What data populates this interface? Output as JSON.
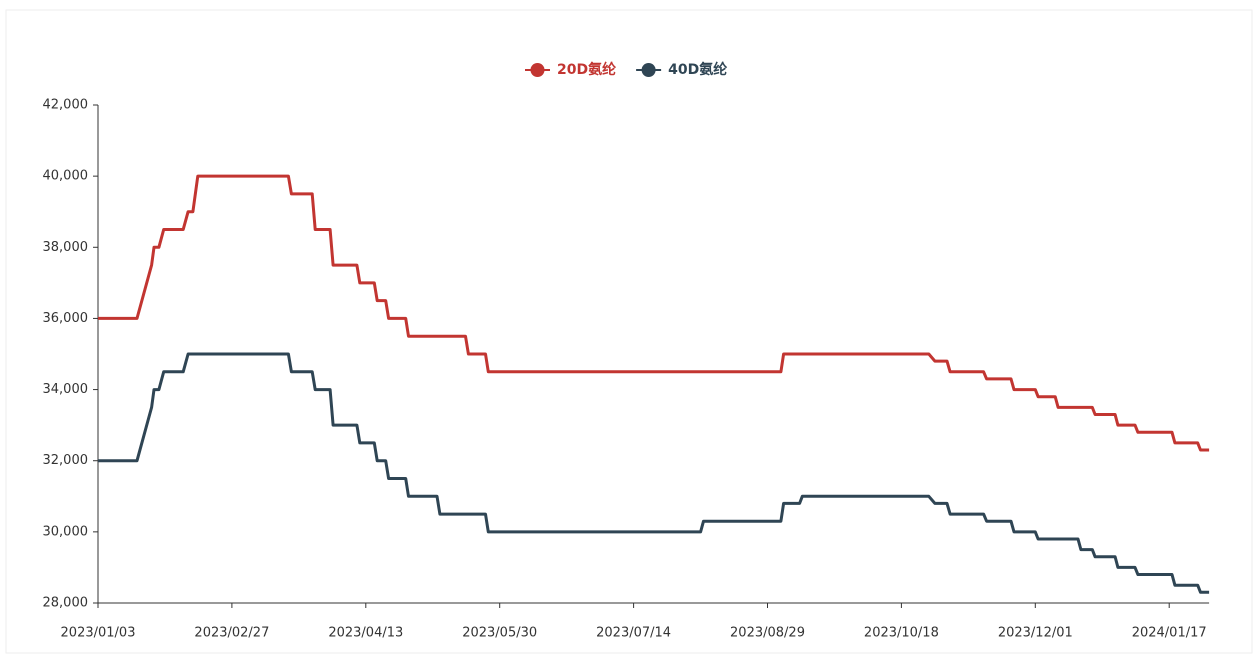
{
  "chart_data": {
    "type": "line",
    "x": [
      "2023/01/03",
      "2023/01/19",
      "2023/01/25",
      "2023/01/26",
      "2023/01/28",
      "2023/01/30",
      "2023/02/07",
      "2023/02/09",
      "2023/02/11",
      "2023/02/13",
      "2023/03/18",
      "2023/03/19",
      "2023/03/26",
      "2023/03/27",
      "2023/04/01",
      "2023/04/02",
      "2023/04/10",
      "2023/04/11",
      "2023/04/16",
      "2023/04/17",
      "2023/04/20",
      "2023/04/21",
      "2023/04/27",
      "2023/04/28",
      "2023/05/08",
      "2023/05/09",
      "2023/05/18",
      "2023/05/19",
      "2023/05/25",
      "2023/05/26",
      "2023/08/06",
      "2023/08/07",
      "2023/09/03",
      "2023/09/04",
      "2023/09/10",
      "2023/09/11",
      "2023/10/27",
      "2023/10/29",
      "2023/11/02",
      "2023/11/03",
      "2023/11/14",
      "2023/11/15",
      "2023/11/23",
      "2023/11/24",
      "2023/12/01",
      "2023/12/02",
      "2023/12/08",
      "2023/12/09",
      "2023/12/16",
      "2023/12/17",
      "2023/12/21",
      "2023/12/22",
      "2023/12/29",
      "2023/12/30",
      "2024/01/05",
      "2024/01/06",
      "2024/01/18",
      "2024/01/19",
      "2024/01/27",
      "2024/01/28",
      "2024/01/31"
    ],
    "series": [
      {
        "name": "20D氨纶",
        "color": "#c23531",
        "values": [
          36000,
          36000,
          37500,
          38000,
          38000,
          38500,
          38500,
          39000,
          39000,
          40000,
          40000,
          39500,
          39500,
          38500,
          38500,
          37500,
          37500,
          37000,
          37000,
          36500,
          36500,
          36000,
          36000,
          35500,
          35500,
          35500,
          35500,
          35000,
          35000,
          34500,
          34500,
          34500,
          34500,
          35000,
          35000,
          35000,
          35000,
          34800,
          34800,
          34500,
          34500,
          34300,
          34300,
          34000,
          34000,
          33800,
          33800,
          33500,
          33500,
          33500,
          33500,
          33300,
          33300,
          33000,
          33000,
          32800,
          32800,
          32500,
          32500,
          32300,
          32300
        ]
      },
      {
        "name": "40D氨纶",
        "color": "#2f4554",
        "values": [
          32000,
          32000,
          33500,
          34000,
          34000,
          34500,
          34500,
          35000,
          35000,
          35000,
          35000,
          34500,
          34500,
          34000,
          34000,
          33000,
          33000,
          32500,
          32500,
          32000,
          32000,
          31500,
          31500,
          31000,
          31000,
          30500,
          30500,
          30500,
          30500,
          30000,
          30000,
          30300,
          30300,
          30800,
          30800,
          31000,
          31000,
          30800,
          30800,
          30500,
          30500,
          30300,
          30300,
          30000,
          30000,
          29800,
          29800,
          29800,
          29800,
          29500,
          29500,
          29300,
          29300,
          29000,
          29000,
          28800,
          28800,
          28500,
          28500,
          28300,
          28300
        ]
      }
    ],
    "xlim": [
      "2023/01/03",
      "2024/01/31"
    ],
    "xticks": [
      "2023/01/03",
      "2023/02/27",
      "2023/04/13",
      "2023/05/30",
      "2023/07/14",
      "2023/08/29",
      "2023/10/18",
      "2023/12/01",
      "2024/01/17"
    ],
    "ylim": [
      28000,
      42000
    ],
    "yticks": [
      {
        "value": 28000,
        "label": "28,000"
      },
      {
        "value": 30000,
        "label": "30,000"
      },
      {
        "value": 32000,
        "label": "32,000"
      },
      {
        "value": 34000,
        "label": "34,000"
      },
      {
        "value": 36000,
        "label": "36,000"
      },
      {
        "value": 38000,
        "label": "38,000"
      },
      {
        "value": 40000,
        "label": "40,000"
      },
      {
        "value": 42000,
        "label": "42,000"
      }
    ],
    "grid": false,
    "legend": "top"
  }
}
